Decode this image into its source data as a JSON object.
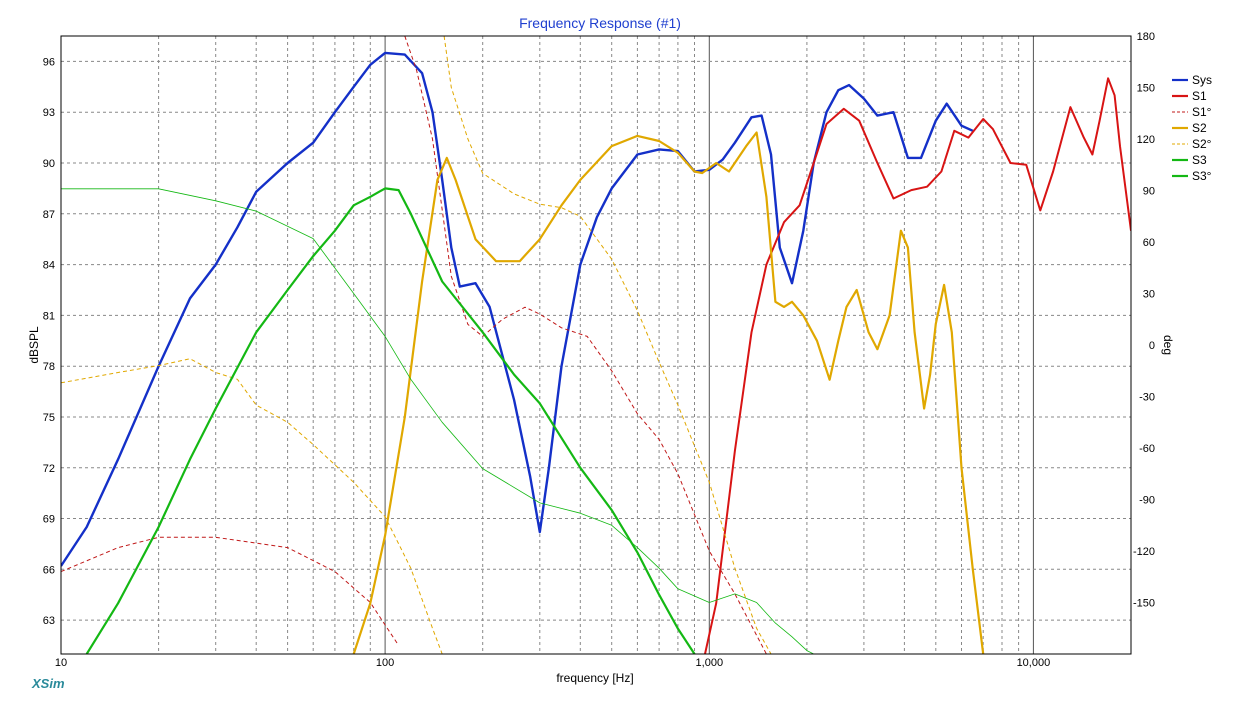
{
  "chart_data": {
    "type": "line",
    "title": "Frequency Response (#1)",
    "xlabel": "frequency [Hz]",
    "ylabel": "dBSPL",
    "y2label": "deg",
    "xscale": "log",
    "xlim": [
      10,
      20000
    ],
    "ylim": [
      61,
      97.5
    ],
    "y2lim": [
      -180,
      180
    ],
    "x_ticks": [
      10,
      100,
      1000,
      10000
    ],
    "x_tick_labels": [
      "10",
      "100",
      "1,000",
      "10,000"
    ],
    "y_ticks": [
      63,
      66,
      69,
      72,
      75,
      78,
      81,
      84,
      87,
      90,
      93,
      96
    ],
    "y2_ticks": [
      -150,
      -120,
      -90,
      -60,
      -30,
      0,
      30,
      60,
      90,
      120,
      150,
      180
    ],
    "grid": true,
    "legend_position": "right",
    "brand": "XSim",
    "series": [
      {
        "name": "Sys",
        "color": "#1430c8",
        "style": "solid",
        "axis": "left",
        "width": 2.4,
        "points": [
          [
            10,
            66.2
          ],
          [
            12,
            68.5
          ],
          [
            15,
            72.5
          ],
          [
            20,
            78
          ],
          [
            25,
            82
          ],
          [
            30,
            84
          ],
          [
            35,
            86.2
          ],
          [
            40,
            88.3
          ],
          [
            50,
            90
          ],
          [
            60,
            91.2
          ],
          [
            70,
            93
          ],
          [
            80,
            94.5
          ],
          [
            90,
            95.8
          ],
          [
            100,
            96.5
          ],
          [
            115,
            96.4
          ],
          [
            130,
            95.3
          ],
          [
            140,
            93
          ],
          [
            150,
            89
          ],
          [
            160,
            85
          ],
          [
            170,
            82.7
          ],
          [
            190,
            82.9
          ],
          [
            210,
            81.5
          ],
          [
            250,
            76
          ],
          [
            280,
            71.5
          ],
          [
            300,
            68.2
          ],
          [
            320,
            72
          ],
          [
            350,
            78
          ],
          [
            400,
            84
          ],
          [
            450,
            86.8
          ],
          [
            500,
            88.5
          ],
          [
            600,
            90.5
          ],
          [
            700,
            90.8
          ],
          [
            800,
            90.7
          ],
          [
            900,
            89.5
          ],
          [
            1000,
            89.6
          ],
          [
            1100,
            90.2
          ],
          [
            1200,
            91.2
          ],
          [
            1350,
            92.7
          ],
          [
            1450,
            92.8
          ],
          [
            1550,
            90.5
          ],
          [
            1650,
            85
          ],
          [
            1800,
            82.9
          ],
          [
            1950,
            86
          ],
          [
            2100,
            90
          ],
          [
            2300,
            93
          ],
          [
            2500,
            94.3
          ],
          [
            2700,
            94.6
          ],
          [
            3000,
            93.8
          ],
          [
            3300,
            92.8
          ],
          [
            3700,
            93
          ],
          [
            4100,
            90.3
          ],
          [
            4500,
            90.3
          ],
          [
            5000,
            92.5
          ],
          [
            5400,
            93.5
          ],
          [
            6000,
            92.2
          ],
          [
            6500,
            91.9
          ]
        ]
      },
      {
        "name": "S1",
        "color": "#d81414",
        "style": "solid",
        "axis": "left",
        "width": 2.0,
        "points": [
          [
            970,
            61
          ],
          [
            1050,
            64
          ],
          [
            1200,
            73
          ],
          [
            1350,
            80
          ],
          [
            1500,
            84
          ],
          [
            1700,
            86.5
          ],
          [
            1900,
            87.5
          ],
          [
            2100,
            90
          ],
          [
            2300,
            92.3
          ],
          [
            2600,
            93.2
          ],
          [
            2900,
            92.5
          ],
          [
            3300,
            90
          ],
          [
            3700,
            87.9
          ],
          [
            4200,
            88.4
          ],
          [
            4700,
            88.6
          ],
          [
            5200,
            89.5
          ],
          [
            5700,
            91.9
          ],
          [
            6300,
            91.5
          ],
          [
            7000,
            92.6
          ],
          [
            7500,
            92
          ],
          [
            8500,
            90
          ],
          [
            9500,
            89.9
          ],
          [
            10500,
            87.2
          ],
          [
            11500,
            89.5
          ],
          [
            13000,
            93.3
          ],
          [
            14300,
            91.5
          ],
          [
            15200,
            90.5
          ],
          [
            16000,
            92.5
          ],
          [
            17000,
            95
          ],
          [
            17800,
            94
          ],
          [
            18500,
            91
          ],
          [
            20000,
            86
          ]
        ]
      },
      {
        "name": "S1°",
        "color": "#c01818",
        "style": "dash",
        "axis": "right",
        "width": 1.0,
        "points": [
          [
            10,
            -132
          ],
          [
            15,
            -118
          ],
          [
            20,
            -112
          ],
          [
            30,
            -112
          ],
          [
            50,
            -118
          ],
          [
            70,
            -132
          ],
          [
            90,
            -150
          ],
          [
            110,
            -175
          ],
          [
            115,
            180
          ],
          [
            125,
            160
          ],
          [
            140,
            120
          ],
          [
            160,
            40
          ],
          [
            180,
            12
          ],
          [
            200,
            5
          ],
          [
            230,
            15
          ],
          [
            270,
            22
          ],
          [
            300,
            18
          ],
          [
            350,
            10
          ],
          [
            420,
            5
          ],
          [
            500,
            -15
          ],
          [
            600,
            -40
          ],
          [
            700,
            -55
          ],
          [
            800,
            -75
          ],
          [
            1000,
            -120
          ],
          [
            1200,
            -145
          ],
          [
            1500,
            -180
          ]
        ]
      },
      {
        "name": "S2",
        "color": "#e0a800",
        "style": "solid",
        "axis": "left",
        "width": 2.2,
        "points": [
          [
            80,
            61
          ],
          [
            90,
            64
          ],
          [
            100,
            68
          ],
          [
            115,
            75
          ],
          [
            130,
            83
          ],
          [
            145,
            89
          ],
          [
            155,
            90.3
          ],
          [
            165,
            89
          ],
          [
            190,
            85.5
          ],
          [
            220,
            84.2
          ],
          [
            260,
            84.2
          ],
          [
            300,
            85.5
          ],
          [
            350,
            87.5
          ],
          [
            400,
            89
          ],
          [
            500,
            91
          ],
          [
            600,
            91.6
          ],
          [
            700,
            91.3
          ],
          [
            800,
            90.6
          ],
          [
            900,
            89.5
          ],
          [
            950,
            89.4
          ],
          [
            1050,
            90
          ],
          [
            1150,
            89.5
          ],
          [
            1300,
            91
          ],
          [
            1400,
            91.8
          ],
          [
            1500,
            88
          ],
          [
            1600,
            81.8
          ],
          [
            1700,
            81.5
          ],
          [
            1800,
            81.8
          ],
          [
            1950,
            81
          ],
          [
            2150,
            79.5
          ],
          [
            2350,
            77.2
          ],
          [
            2500,
            79.5
          ],
          [
            2650,
            81.5
          ],
          [
            2850,
            82.5
          ],
          [
            3100,
            80
          ],
          [
            3300,
            79
          ],
          [
            3600,
            81
          ],
          [
            3900,
            86
          ],
          [
            4100,
            85
          ],
          [
            4300,
            80
          ],
          [
            4600,
            75.5
          ],
          [
            4800,
            77.5
          ],
          [
            5000,
            80.5
          ],
          [
            5300,
            82.8
          ],
          [
            5600,
            80
          ],
          [
            6000,
            72
          ],
          [
            6500,
            66
          ],
          [
            7000,
            61
          ]
        ]
      },
      {
        "name": "S2°",
        "color": "#e0a800",
        "style": "dash",
        "axis": "right",
        "width": 1.0,
        "points": [
          [
            10,
            -22
          ],
          [
            15,
            -16
          ],
          [
            20,
            -12
          ],
          [
            25,
            -8
          ],
          [
            30,
            -16
          ],
          [
            35,
            -20
          ],
          [
            40,
            -35
          ],
          [
            50,
            -45
          ],
          [
            60,
            -58
          ],
          [
            80,
            -80
          ],
          [
            100,
            -100
          ],
          [
            120,
            -130
          ],
          [
            140,
            -165
          ],
          [
            150,
            -180
          ],
          [
            152,
            180
          ],
          [
            160,
            150
          ],
          [
            180,
            120
          ],
          [
            200,
            100
          ],
          [
            250,
            88
          ],
          [
            300,
            82
          ],
          [
            350,
            80
          ],
          [
            400,
            75
          ],
          [
            500,
            50
          ],
          [
            600,
            20
          ],
          [
            700,
            -10
          ],
          [
            800,
            -35
          ],
          [
            1000,
            -80
          ],
          [
            1200,
            -130
          ],
          [
            1400,
            -165
          ],
          [
            1550,
            -180
          ]
        ]
      },
      {
        "name": "S3",
        "color": "#14b814",
        "style": "solid",
        "axis": "left",
        "width": 2.2,
        "points": [
          [
            12,
            61
          ],
          [
            15,
            64
          ],
          [
            20,
            68.5
          ],
          [
            25,
            72.5
          ],
          [
            30,
            75.5
          ],
          [
            40,
            80
          ],
          [
            50,
            82.5
          ],
          [
            60,
            84.5
          ],
          [
            70,
            86
          ],
          [
            80,
            87.5
          ],
          [
            90,
            88
          ],
          [
            100,
            88.5
          ],
          [
            110,
            88.4
          ],
          [
            120,
            87
          ],
          [
            150,
            83
          ],
          [
            200,
            80
          ],
          [
            250,
            77.5
          ],
          [
            300,
            75.8
          ],
          [
            400,
            72
          ],
          [
            500,
            69.5
          ],
          [
            600,
            67
          ],
          [
            700,
            64.5
          ],
          [
            800,
            62.5
          ],
          [
            900,
            61
          ]
        ]
      },
      {
        "name": "S3°",
        "color": "#14b814",
        "style": "solid",
        "axis": "right",
        "width": 0.8,
        "points": [
          [
            10,
            91
          ],
          [
            20,
            91
          ],
          [
            30,
            84
          ],
          [
            40,
            78
          ],
          [
            60,
            62
          ],
          [
            80,
            30
          ],
          [
            100,
            5
          ],
          [
            120,
            -20
          ],
          [
            150,
            -45
          ],
          [
            200,
            -72
          ],
          [
            300,
            -92
          ],
          [
            400,
            -98
          ],
          [
            500,
            -105
          ],
          [
            600,
            -118
          ],
          [
            700,
            -130
          ],
          [
            800,
            -142
          ],
          [
            1000,
            -150
          ],
          [
            1200,
            -145
          ],
          [
            1400,
            -150
          ],
          [
            1600,
            -162
          ],
          [
            1800,
            -170
          ],
          [
            2000,
            -178
          ],
          [
            2100,
            -180
          ]
        ]
      }
    ]
  }
}
